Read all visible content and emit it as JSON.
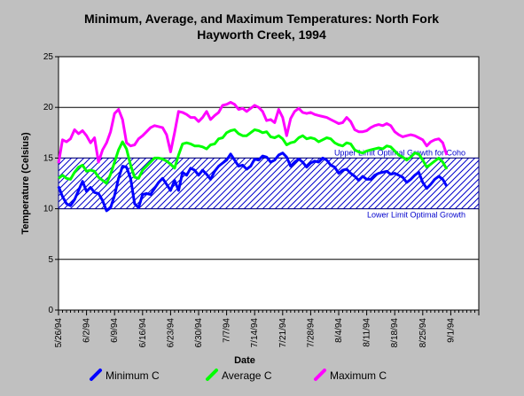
{
  "chart_data": {
    "type": "line",
    "title_line1": "Minimum, Average, and Maximum Temperatures:  North Fork",
    "title_line2": "Hayworth Creek, 1994",
    "xlabel": "Date",
    "ylabel": "Temperature (Celsius)",
    "ylim": [
      0,
      25
    ],
    "yticks": [
      0,
      5,
      10,
      15,
      20,
      25
    ],
    "x_range_days": [
      0,
      105
    ],
    "xticks": [
      {
        "day": 0,
        "label": "5/26/94"
      },
      {
        "day": 7,
        "label": "6/2/94"
      },
      {
        "day": 14,
        "label": "6/9/94"
      },
      {
        "day": 21,
        "label": "6/16/94"
      },
      {
        "day": 28,
        "label": "6/23/94"
      },
      {
        "day": 35,
        "label": "6/30/94"
      },
      {
        "day": 42,
        "label": "7/7/94"
      },
      {
        "day": 49,
        "label": "7/14/94"
      },
      {
        "day": 56,
        "label": "7/21/94"
      },
      {
        "day": 63,
        "label": "7/28/94"
      },
      {
        "day": 70,
        "label": "8/4/94"
      },
      {
        "day": 77,
        "label": "8/11/94"
      },
      {
        "day": 84,
        "label": "8/18/94"
      },
      {
        "day": 91,
        "label": "8/25/94"
      },
      {
        "day": 98,
        "label": "9/1/94"
      }
    ],
    "grid": "horizontal",
    "band": {
      "low": 10,
      "high": 15
    },
    "annotations": {
      "upper": "Upper Limit Optimal Growth for Coho",
      "lower": "Lower Limit Optimal Growth"
    },
    "legend_position": "bottom",
    "series": [
      {
        "name": "Minimum C",
        "color": "#0000ff",
        "points": [
          [
            0,
            12.2
          ],
          [
            1,
            11.2
          ],
          [
            2,
            10.5
          ],
          [
            3,
            10.3
          ],
          [
            4,
            10.9
          ],
          [
            5,
            11.8
          ],
          [
            6,
            12.7
          ],
          [
            7,
            11.7
          ],
          [
            8,
            12.1
          ],
          [
            9,
            11.6
          ],
          [
            10,
            11.5
          ],
          [
            11,
            10.8
          ],
          [
            12,
            9.8
          ],
          [
            13,
            10.1
          ],
          [
            14,
            11.3
          ],
          [
            15,
            13.0
          ],
          [
            16,
            14.2
          ],
          [
            17,
            14.1
          ],
          [
            18,
            13.0
          ],
          [
            19,
            10.5
          ],
          [
            20,
            10.1
          ],
          [
            21,
            11.4
          ],
          [
            22,
            11.5
          ],
          [
            23,
            11.4
          ],
          [
            24,
            12.0
          ],
          [
            25,
            12.6
          ],
          [
            26,
            13.0
          ],
          [
            27,
            12.4
          ],
          [
            28,
            11.8
          ],
          [
            29,
            12.8
          ],
          [
            30,
            11.8
          ],
          [
            31,
            13.6
          ],
          [
            32,
            13.3
          ],
          [
            33,
            14.0
          ],
          [
            34,
            13.8
          ],
          [
            35,
            13.3
          ],
          [
            36,
            13.8
          ],
          [
            37,
            13.4
          ],
          [
            38,
            12.9
          ],
          [
            39,
            13.7
          ],
          [
            40,
            14.2
          ],
          [
            41,
            14.5
          ],
          [
            42,
            14.8
          ],
          [
            43,
            15.4
          ],
          [
            44,
            14.8
          ],
          [
            45,
            14.2
          ],
          [
            46,
            14.3
          ],
          [
            47,
            13.9
          ],
          [
            48,
            14.2
          ],
          [
            49,
            14.9
          ],
          [
            50,
            14.8
          ],
          [
            51,
            15.2
          ],
          [
            52,
            15.1
          ],
          [
            53,
            14.6
          ],
          [
            54,
            14.8
          ],
          [
            55,
            15.3
          ],
          [
            56,
            15.5
          ],
          [
            57,
            15.1
          ],
          [
            58,
            14.2
          ],
          [
            59,
            14.6
          ],
          [
            60,
            14.9
          ],
          [
            61,
            14.6
          ],
          [
            62,
            14.1
          ],
          [
            63,
            14.5
          ],
          [
            64,
            14.7
          ],
          [
            65,
            14.6
          ],
          [
            66,
            15.0
          ],
          [
            67,
            14.8
          ],
          [
            68,
            14.3
          ],
          [
            69,
            14.1
          ],
          [
            70,
            13.5
          ],
          [
            71,
            13.8
          ],
          [
            72,
            13.9
          ],
          [
            73,
            13.5
          ],
          [
            74,
            13.2
          ],
          [
            75,
            12.8
          ],
          [
            76,
            13.2
          ],
          [
            77,
            12.9
          ],
          [
            78,
            12.9
          ],
          [
            79,
            13.3
          ],
          [
            80,
            13.5
          ],
          [
            81,
            13.6
          ],
          [
            82,
            13.7
          ],
          [
            83,
            13.4
          ],
          [
            84,
            13.5
          ],
          [
            85,
            13.3
          ],
          [
            86,
            13.1
          ],
          [
            87,
            12.6
          ],
          [
            88,
            12.9
          ],
          [
            89,
            13.3
          ],
          [
            90,
            13.6
          ],
          [
            91,
            12.6
          ],
          [
            92,
            12.0
          ],
          [
            93,
            12.4
          ],
          [
            94,
            12.9
          ],
          [
            95,
            13.2
          ],
          [
            96,
            12.9
          ],
          [
            97,
            12.2
          ]
        ]
      },
      {
        "name": "Average C",
        "color": "#00ff00",
        "points": [
          [
            0,
            13.0
          ],
          [
            1,
            13.3
          ],
          [
            2,
            13.0
          ],
          [
            3,
            12.9
          ],
          [
            4,
            13.6
          ],
          [
            5,
            14.1
          ],
          [
            6,
            14.3
          ],
          [
            7,
            13.7
          ],
          [
            8,
            13.8
          ],
          [
            9,
            13.7
          ],
          [
            10,
            13.1
          ],
          [
            11,
            12.8
          ],
          [
            12,
            12.5
          ],
          [
            13,
            13.4
          ],
          [
            14,
            14.6
          ],
          [
            15,
            15.8
          ],
          [
            16,
            16.6
          ],
          [
            17,
            15.9
          ],
          [
            18,
            14.3
          ],
          [
            19,
            13.1
          ],
          [
            20,
            13.0
          ],
          [
            21,
            13.8
          ],
          [
            22,
            14.2
          ],
          [
            23,
            14.6
          ],
          [
            24,
            15.0
          ],
          [
            25,
            15.0
          ],
          [
            26,
            14.9
          ],
          [
            27,
            14.7
          ],
          [
            28,
            14.4
          ],
          [
            29,
            14.0
          ],
          [
            30,
            15.3
          ],
          [
            31,
            16.4
          ],
          [
            32,
            16.5
          ],
          [
            33,
            16.4
          ],
          [
            34,
            16.2
          ],
          [
            35,
            16.2
          ],
          [
            36,
            16.1
          ],
          [
            37,
            15.9
          ],
          [
            38,
            16.3
          ],
          [
            39,
            16.4
          ],
          [
            40,
            16.9
          ],
          [
            41,
            17.0
          ],
          [
            42,
            17.5
          ],
          [
            43,
            17.7
          ],
          [
            44,
            17.8
          ],
          [
            45,
            17.4
          ],
          [
            46,
            17.2
          ],
          [
            47,
            17.2
          ],
          [
            48,
            17.5
          ],
          [
            49,
            17.8
          ],
          [
            50,
            17.7
          ],
          [
            51,
            17.5
          ],
          [
            52,
            17.6
          ],
          [
            53,
            17.1
          ],
          [
            54,
            17.0
          ],
          [
            55,
            17.2
          ],
          [
            56,
            16.9
          ],
          [
            57,
            16.3
          ],
          [
            58,
            16.5
          ],
          [
            59,
            16.6
          ],
          [
            60,
            17.0
          ],
          [
            61,
            17.2
          ],
          [
            62,
            16.9
          ],
          [
            63,
            17.0
          ],
          [
            64,
            16.9
          ],
          [
            65,
            16.6
          ],
          [
            66,
            16.8
          ],
          [
            67,
            17.0
          ],
          [
            68,
            16.9
          ],
          [
            69,
            16.5
          ],
          [
            70,
            16.3
          ],
          [
            71,
            16.2
          ],
          [
            72,
            16.5
          ],
          [
            73,
            16.4
          ],
          [
            74,
            15.8
          ],
          [
            75,
            15.6
          ],
          [
            76,
            15.5
          ],
          [
            77,
            15.7
          ],
          [
            78,
            15.8
          ],
          [
            79,
            15.9
          ],
          [
            80,
            16.0
          ],
          [
            81,
            15.9
          ],
          [
            82,
            16.2
          ],
          [
            83,
            16.1
          ],
          [
            84,
            15.7
          ],
          [
            85,
            15.3
          ],
          [
            86,
            15.1
          ],
          [
            87,
            14.8
          ],
          [
            88,
            15.1
          ],
          [
            89,
            15.5
          ],
          [
            90,
            15.4
          ],
          [
            91,
            14.8
          ],
          [
            92,
            14.1
          ],
          [
            93,
            14.4
          ],
          [
            94,
            14.7
          ],
          [
            95,
            15.0
          ],
          [
            96,
            14.6
          ],
          [
            97,
            13.9
          ]
        ]
      },
      {
        "name": "Maximum C",
        "color": "#ff00ff",
        "points": [
          [
            0,
            14.5
          ],
          [
            1,
            16.8
          ],
          [
            2,
            16.6
          ],
          [
            3,
            16.9
          ],
          [
            4,
            17.8
          ],
          [
            5,
            17.4
          ],
          [
            6,
            17.7
          ],
          [
            7,
            17.2
          ],
          [
            8,
            16.5
          ],
          [
            9,
            17.0
          ],
          [
            10,
            14.6
          ],
          [
            11,
            15.8
          ],
          [
            12,
            16.5
          ],
          [
            13,
            17.6
          ],
          [
            14,
            19.4
          ],
          [
            15,
            19.8
          ],
          [
            16,
            18.8
          ],
          [
            17,
            16.5
          ],
          [
            18,
            16.2
          ],
          [
            19,
            16.3
          ],
          [
            20,
            16.9
          ],
          [
            21,
            17.2
          ],
          [
            22,
            17.6
          ],
          [
            23,
            18.0
          ],
          [
            24,
            18.2
          ],
          [
            25,
            18.1
          ],
          [
            26,
            18.0
          ],
          [
            27,
            17.3
          ],
          [
            28,
            15.6
          ],
          [
            29,
            17.5
          ],
          [
            30,
            19.6
          ],
          [
            31,
            19.5
          ],
          [
            32,
            19.3
          ],
          [
            33,
            19.0
          ],
          [
            34,
            19.0
          ],
          [
            35,
            18.6
          ],
          [
            36,
            19.0
          ],
          [
            37,
            19.6
          ],
          [
            38,
            18.8
          ],
          [
            39,
            19.2
          ],
          [
            40,
            19.5
          ],
          [
            41,
            20.2
          ],
          [
            42,
            20.3
          ],
          [
            43,
            20.5
          ],
          [
            44,
            20.3
          ],
          [
            45,
            19.8
          ],
          [
            46,
            19.9
          ],
          [
            47,
            19.6
          ],
          [
            48,
            19.9
          ],
          [
            49,
            20.2
          ],
          [
            50,
            20.0
          ],
          [
            51,
            19.6
          ],
          [
            52,
            18.7
          ],
          [
            53,
            18.8
          ],
          [
            54,
            18.5
          ],
          [
            55,
            19.8
          ],
          [
            56,
            19.0
          ],
          [
            57,
            17.2
          ],
          [
            58,
            18.9
          ],
          [
            59,
            19.6
          ],
          [
            60,
            19.9
          ],
          [
            61,
            19.5
          ],
          [
            62,
            19.4
          ],
          [
            63,
            19.5
          ],
          [
            64,
            19.3
          ],
          [
            65,
            19.2
          ],
          [
            66,
            19.1
          ],
          [
            67,
            19.0
          ],
          [
            68,
            18.8
          ],
          [
            69,
            18.6
          ],
          [
            70,
            18.4
          ],
          [
            71,
            18.5
          ],
          [
            72,
            19.0
          ],
          [
            73,
            18.6
          ],
          [
            74,
            17.8
          ],
          [
            75,
            17.6
          ],
          [
            76,
            17.6
          ],
          [
            77,
            17.7
          ],
          [
            78,
            18.0
          ],
          [
            79,
            18.2
          ],
          [
            80,
            18.3
          ],
          [
            81,
            18.2
          ],
          [
            82,
            18.4
          ],
          [
            83,
            18.2
          ],
          [
            84,
            17.6
          ],
          [
            85,
            17.3
          ],
          [
            86,
            17.1
          ],
          [
            87,
            17.2
          ],
          [
            88,
            17.3
          ],
          [
            89,
            17.2
          ],
          [
            90,
            17.0
          ],
          [
            91,
            16.8
          ],
          [
            92,
            16.2
          ],
          [
            93,
            16.6
          ],
          [
            94,
            16.8
          ],
          [
            95,
            16.9
          ],
          [
            96,
            16.5
          ],
          [
            97,
            15.3
          ]
        ]
      }
    ]
  }
}
